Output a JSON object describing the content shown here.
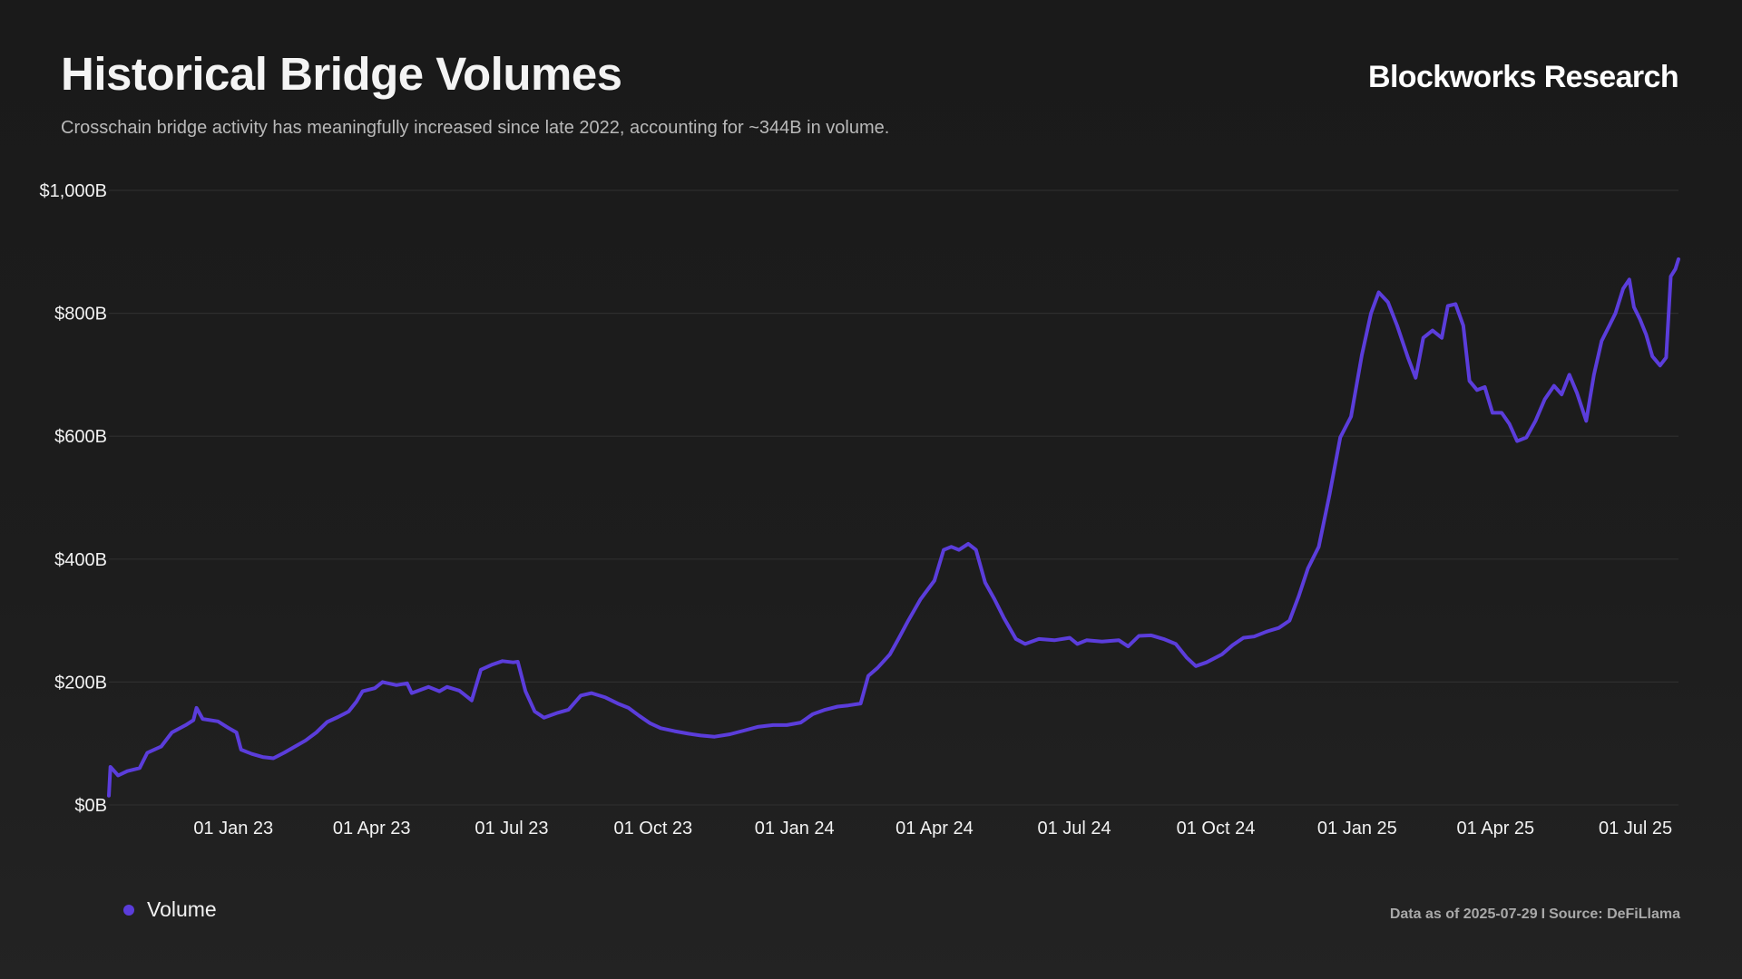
{
  "header": {
    "title": "Historical Bridge Volumes",
    "subtitle": "Crosschain bridge activity has meaningfully increased since late 2022, accounting for ~344B in volume.",
    "brand": "Blockworks Research"
  },
  "footer": {
    "data_as_of": "Data as of 2025-07-29",
    "separator": "I",
    "source": "Source: DeFiLlama"
  },
  "colors": {
    "line": "#5b3ddb",
    "grid": "#2e2e2e",
    "tick_text": "#f2f2f2"
  },
  "chart_data": {
    "type": "line",
    "title": "Historical Bridge Volumes",
    "xlabel": "",
    "ylabel": "",
    "grid": "horizontal",
    "legend_position": "bottom-left",
    "x_ticks": [
      "01 Jan 23",
      "01 Apr 23",
      "01 Jul 23",
      "01 Oct 23",
      "01 Jan 24",
      "01 Apr 24",
      "01 Jul 24",
      "01 Oct 24",
      "01 Jan 25",
      "01 Apr 25",
      "01 Jul 25"
    ],
    "x_tick_dates": [
      "2023-01-01",
      "2023-04-01",
      "2023-07-01",
      "2023-10-01",
      "2024-01-01",
      "2024-04-01",
      "2024-07-01",
      "2024-10-01",
      "2025-01-01",
      "2025-04-01",
      "2025-07-01"
    ],
    "y_ticks": [
      "$0B",
      "$200B",
      "$400B",
      "$600B",
      "$800B",
      "$1,000B"
    ],
    "y_tick_values": [
      0,
      200,
      400,
      600,
      800,
      1000
    ],
    "xlim": [
      "2022-10-12",
      "2025-07-29"
    ],
    "ylim": [
      0,
      1000
    ],
    "series": [
      {
        "name": "Volume",
        "points": [
          [
            "2022-10-12",
            15
          ],
          [
            "2022-10-13",
            62
          ],
          [
            "2022-10-18",
            48
          ],
          [
            "2022-10-24",
            55
          ],
          [
            "2022-11-01",
            60
          ],
          [
            "2022-11-06",
            85
          ],
          [
            "2022-11-15",
            95
          ],
          [
            "2022-11-22",
            118
          ],
          [
            "2022-12-01",
            130
          ],
          [
            "2022-12-06",
            138
          ],
          [
            "2022-12-08",
            158
          ],
          [
            "2022-12-12",
            140
          ],
          [
            "2022-12-22",
            136
          ],
          [
            "2022-12-29",
            125
          ],
          [
            "2023-01-03",
            118
          ],
          [
            "2023-01-06",
            90
          ],
          [
            "2023-01-13",
            83
          ],
          [
            "2023-01-20",
            78
          ],
          [
            "2023-01-27",
            76
          ],
          [
            "2023-02-03",
            85
          ],
          [
            "2023-02-10",
            95
          ],
          [
            "2023-02-17",
            105
          ],
          [
            "2023-02-24",
            118
          ],
          [
            "2023-03-03",
            135
          ],
          [
            "2023-03-10",
            143
          ],
          [
            "2023-03-17",
            152
          ],
          [
            "2023-03-22",
            168
          ],
          [
            "2023-03-26",
            185
          ],
          [
            "2023-04-03",
            190
          ],
          [
            "2023-04-08",
            200
          ],
          [
            "2023-04-17",
            195
          ],
          [
            "2023-04-24",
            198
          ],
          [
            "2023-04-27",
            182
          ],
          [
            "2023-05-08",
            192
          ],
          [
            "2023-05-15",
            185
          ],
          [
            "2023-05-20",
            192
          ],
          [
            "2023-05-28",
            186
          ],
          [
            "2023-06-05",
            170
          ],
          [
            "2023-06-11",
            220
          ],
          [
            "2023-06-18",
            228
          ],
          [
            "2023-06-25",
            234
          ],
          [
            "2023-07-02",
            232
          ],
          [
            "2023-07-05",
            233
          ],
          [
            "2023-07-10",
            185
          ],
          [
            "2023-07-16",
            152
          ],
          [
            "2023-07-22",
            142
          ],
          [
            "2023-07-31",
            150
          ],
          [
            "2023-08-07",
            155
          ],
          [
            "2023-08-15",
            178
          ],
          [
            "2023-08-22",
            182
          ],
          [
            "2023-08-31",
            175
          ],
          [
            "2023-09-08",
            165
          ],
          [
            "2023-09-15",
            158
          ],
          [
            "2023-09-22",
            145
          ],
          [
            "2023-09-29",
            133
          ],
          [
            "2023-10-06",
            125
          ],
          [
            "2023-10-15",
            120
          ],
          [
            "2023-10-24",
            116
          ],
          [
            "2023-11-01",
            113
          ],
          [
            "2023-11-10",
            111
          ],
          [
            "2023-11-20",
            115
          ],
          [
            "2023-11-29",
            121
          ],
          [
            "2023-12-08",
            127
          ],
          [
            "2023-12-18",
            130
          ],
          [
            "2023-12-27",
            130
          ],
          [
            "2024-01-05",
            134
          ],
          [
            "2024-01-13",
            148
          ],
          [
            "2024-01-21",
            155
          ],
          [
            "2024-01-29",
            160
          ],
          [
            "2024-02-05",
            162
          ],
          [
            "2024-02-13",
            165
          ],
          [
            "2024-02-18",
            210
          ],
          [
            "2024-02-24",
            223
          ],
          [
            "2024-03-03",
            245
          ],
          [
            "2024-03-09",
            272
          ],
          [
            "2024-03-15",
            300
          ],
          [
            "2024-03-23",
            335
          ],
          [
            "2024-04-01",
            365
          ],
          [
            "2024-04-07",
            415
          ],
          [
            "2024-04-12",
            420
          ],
          [
            "2024-04-17",
            415
          ],
          [
            "2024-04-23",
            425
          ],
          [
            "2024-04-28",
            415
          ],
          [
            "2024-05-04",
            362
          ],
          [
            "2024-05-10",
            335
          ],
          [
            "2024-05-16",
            305
          ],
          [
            "2024-05-24",
            270
          ],
          [
            "2024-05-30",
            262
          ],
          [
            "2024-06-08",
            270
          ],
          [
            "2024-06-18",
            268
          ],
          [
            "2024-06-28",
            272
          ],
          [
            "2024-07-03",
            262
          ],
          [
            "2024-07-09",
            268
          ],
          [
            "2024-07-19",
            266
          ],
          [
            "2024-07-30",
            268
          ],
          [
            "2024-08-05",
            258
          ],
          [
            "2024-08-12",
            275
          ],
          [
            "2024-08-20",
            276
          ],
          [
            "2024-08-28",
            270
          ],
          [
            "2024-09-05",
            262
          ],
          [
            "2024-09-12",
            240
          ],
          [
            "2024-09-18",
            226
          ],
          [
            "2024-09-25",
            232
          ],
          [
            "2024-10-05",
            245
          ],
          [
            "2024-10-12",
            260
          ],
          [
            "2024-10-19",
            272
          ],
          [
            "2024-10-26",
            274
          ],
          [
            "2024-11-03",
            282
          ],
          [
            "2024-11-11",
            288
          ],
          [
            "2024-11-18",
            300
          ],
          [
            "2024-11-24",
            340
          ],
          [
            "2024-11-30",
            385
          ],
          [
            "2024-12-07",
            420
          ],
          [
            "2024-12-14",
            505
          ],
          [
            "2024-12-21",
            598
          ],
          [
            "2024-12-28",
            632
          ],
          [
            "2025-01-04",
            732
          ],
          [
            "2025-01-10",
            800
          ],
          [
            "2025-01-15",
            834
          ],
          [
            "2025-01-21",
            818
          ],
          [
            "2025-01-27",
            780
          ],
          [
            "2025-02-03",
            728
          ],
          [
            "2025-02-08",
            695
          ],
          [
            "2025-02-13",
            760
          ],
          [
            "2025-02-19",
            772
          ],
          [
            "2025-02-25",
            760
          ],
          [
            "2025-03-01",
            812
          ],
          [
            "2025-03-06",
            815
          ],
          [
            "2025-03-11",
            780
          ],
          [
            "2025-03-15",
            690
          ],
          [
            "2025-03-20",
            675
          ],
          [
            "2025-03-25",
            680
          ],
          [
            "2025-03-30",
            638
          ],
          [
            "2025-04-05",
            638
          ],
          [
            "2025-04-10",
            620
          ],
          [
            "2025-04-15",
            592
          ],
          [
            "2025-04-21",
            598
          ],
          [
            "2025-04-27",
            625
          ],
          [
            "2025-05-03",
            660
          ],
          [
            "2025-05-09",
            682
          ],
          [
            "2025-05-14",
            668
          ],
          [
            "2025-05-19",
            700
          ],
          [
            "2025-05-24",
            670
          ],
          [
            "2025-05-30",
            625
          ],
          [
            "2025-06-04",
            700
          ],
          [
            "2025-06-09",
            755
          ],
          [
            "2025-06-14",
            780
          ],
          [
            "2025-06-18",
            800
          ],
          [
            "2025-06-23",
            840
          ],
          [
            "2025-06-27",
            855
          ],
          [
            "2025-06-30",
            810
          ],
          [
            "2025-07-04",
            790
          ],
          [
            "2025-07-08",
            765
          ],
          [
            "2025-07-12",
            730
          ],
          [
            "2025-07-17",
            715
          ],
          [
            "2025-07-21",
            728
          ],
          [
            "2025-07-24",
            860
          ],
          [
            "2025-07-27",
            872
          ],
          [
            "2025-07-29",
            888
          ]
        ]
      }
    ]
  },
  "legend": {
    "items": [
      {
        "label": "Volume"
      }
    ]
  }
}
